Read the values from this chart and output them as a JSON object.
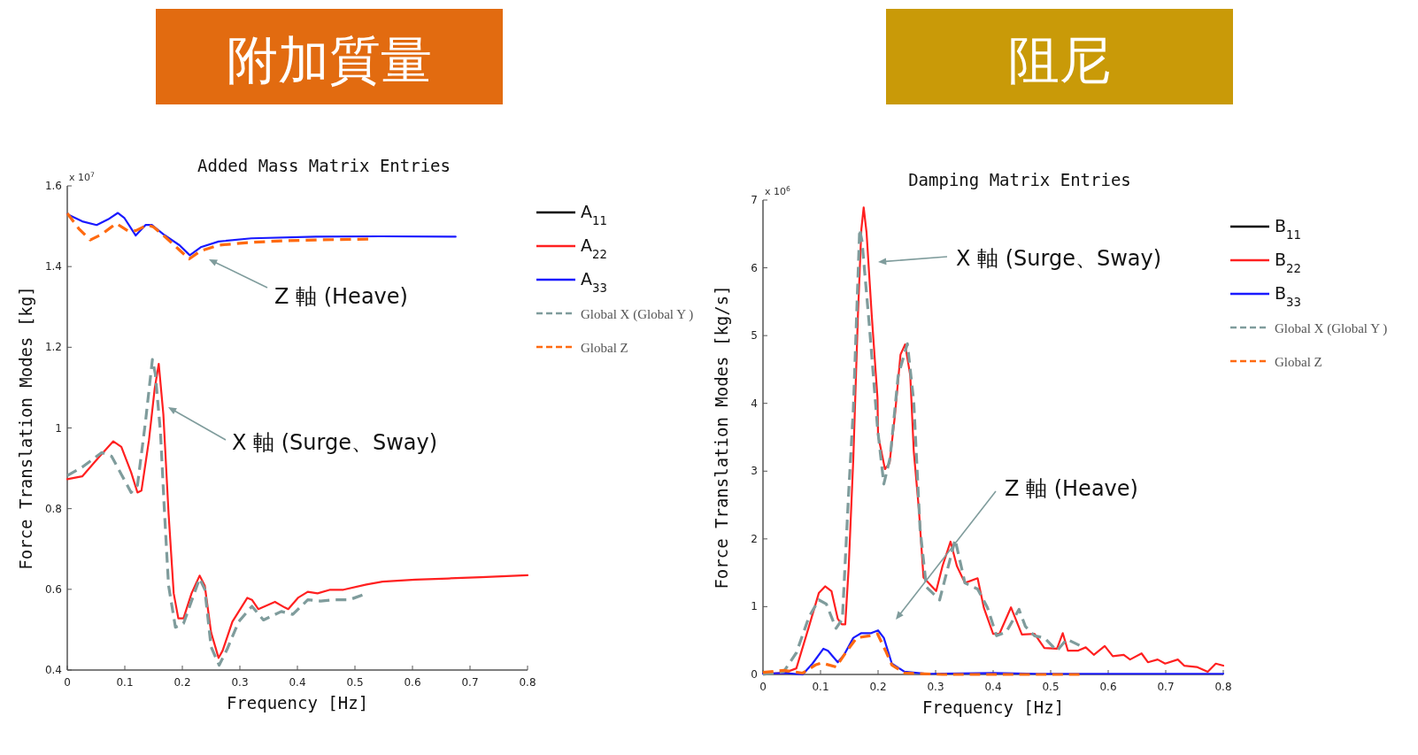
{
  "chart_data": [
    {
      "type": "line",
      "title": "附加質量",
      "subtitle": "Added Mass Matrix Entries",
      "xlabel": "Frequency [Hz]",
      "ylabel": "Force Translation Modes [kg]",
      "xlim": [
        0,
        0.8
      ],
      "ylim": [
        0.4,
        1.6
      ],
      "xticks": [
        0,
        0.1,
        0.2,
        0.3,
        0.4,
        0.5,
        0.6,
        0.7,
        0.8
      ],
      "yticks": [
        0.4,
        0.6,
        0.8,
        1,
        1.2,
        1.4,
        1.6
      ],
      "legend": "right",
      "annotations": [
        "x 10$^{7}$",
        "Z 軸 (Heave)",
        "X 軸 (Surge、Sway)"
      ],
      "series": [
        {
          "name": "A$_{11}$",
          "color": "#000000"
        },
        {
          "name": "A$_{22}$",
          "color": "#ff2020",
          "x": [
            0,
            0.026,
            0.054,
            0.08,
            0.094,
            0.111,
            0.122,
            0.129,
            0.142,
            0.152,
            0.159,
            0.167,
            0.176,
            0.185,
            0.193,
            0.202,
            0.216,
            0.23,
            0.239,
            0.25,
            0.263,
            0.27,
            0.287,
            0.313,
            0.321,
            0.332,
            0.361,
            0.378,
            0.384,
            0.401,
            0.418,
            0.435,
            0.457,
            0.48,
            0.52,
            0.548,
            0.605,
            0.662,
            0.719,
            0.8
          ],
          "values": [
            0.873,
            0.88,
            0.926,
            0.967,
            0.953,
            0.89,
            0.84,
            0.845,
            0.97,
            1.098,
            1.159,
            1.034,
            0.79,
            0.59,
            0.528,
            0.528,
            0.59,
            0.634,
            0.609,
            0.493,
            0.43,
            0.448,
            0.52,
            0.579,
            0.574,
            0.551,
            0.569,
            0.555,
            0.551,
            0.579,
            0.594,
            0.59,
            0.599,
            0.599,
            0.612,
            0.619,
            0.624,
            0.627,
            0.63,
            0.635
          ]
        },
        {
          "name": "A$_{33}$",
          "color": "#1a1aff",
          "x": [
            0,
            0.026,
            0.051,
            0.071,
            0.088,
            0.099,
            0.119,
            0.136,
            0.147,
            0.167,
            0.195,
            0.213,
            0.232,
            0.263,
            0.32,
            0.432,
            0.545,
            0.675
          ],
          "values": [
            1.53,
            1.512,
            1.503,
            1.517,
            1.533,
            1.521,
            1.477,
            1.503,
            1.503,
            1.48,
            1.453,
            1.428,
            1.448,
            1.462,
            1.47,
            1.474,
            1.475,
            1.474
          ]
        },
        {
          "name": "Global X (Global Y )",
          "color": "#7f9c9c",
          "line_style": "dashed",
          "x": [
            0,
            0.026,
            0.06,
            0.077,
            0.094,
            0.111,
            0.122,
            0.136,
            0.148,
            0.153,
            0.162,
            0.169,
            0.176,
            0.188,
            0.202,
            0.219,
            0.23,
            0.239,
            0.25,
            0.264,
            0.278,
            0.298,
            0.321,
            0.341,
            0.372,
            0.392,
            0.418,
            0.44,
            0.463,
            0.49,
            0.513
          ],
          "values": [
            0.882,
            0.903,
            0.939,
            0.93,
            0.885,
            0.84,
            0.858,
            1.016,
            1.17,
            1.134,
            0.99,
            0.79,
            0.61,
            0.506,
            0.515,
            0.583,
            0.627,
            0.6,
            0.457,
            0.412,
            0.452,
            0.52,
            0.558,
            0.524,
            0.545,
            0.538,
            0.574,
            0.571,
            0.574,
            0.574,
            0.586
          ]
        },
        {
          "name": "Global Z",
          "color": "#ff6a10",
          "line_style": "dashed",
          "x": [
            0,
            0.02,
            0.04,
            0.06,
            0.085,
            0.105,
            0.119,
            0.139,
            0.15,
            0.172,
            0.195,
            0.212,
            0.232,
            0.263,
            0.32,
            0.376,
            0.432,
            0.523
          ],
          "values": [
            1.532,
            1.494,
            1.466,
            1.48,
            1.507,
            1.489,
            1.489,
            1.503,
            1.498,
            1.471,
            1.441,
            1.419,
            1.439,
            1.453,
            1.46,
            1.464,
            1.466,
            1.468
          ]
        }
      ]
    },
    {
      "type": "line",
      "title": "阻尼",
      "subtitle": "Damping Matrix Entries",
      "xlabel": "Frequency [Hz]",
      "ylabel": "Force Translation Modes [kg/s]",
      "xlim": [
        0,
        0.8
      ],
      "ylim": [
        0,
        7
      ],
      "xticks": [
        0,
        0.1,
        0.2,
        0.3,
        0.4,
        0.5,
        0.6,
        0.7,
        0.8
      ],
      "yticks": [
        0,
        1,
        2,
        3,
        4,
        5,
        6,
        7
      ],
      "legend": "right",
      "annotations": [
        "x 10$^{6}$",
        "X 軸 (Surge、Sway)",
        "Z 軸 (Heave)"
      ],
      "series": [
        {
          "name": "B$_{11}$",
          "color": "#000000"
        },
        {
          "name": "B$_{22}$",
          "color": "#ff2020",
          "x": [
            0,
            0.036,
            0.058,
            0.08,
            0.097,
            0.108,
            0.119,
            0.13,
            0.137,
            0.143,
            0.149,
            0.157,
            0.165,
            0.171,
            0.175,
            0.18,
            0.189,
            0.199,
            0.2,
            0.212,
            0.22,
            0.229,
            0.239,
            0.247,
            0.256,
            0.262,
            0.271,
            0.279,
            0.301,
            0.312,
            0.326,
            0.337,
            0.351,
            0.373,
            0.384,
            0.4,
            0.411,
            0.431,
            0.45,
            0.472,
            0.489,
            0.511,
            0.521,
            0.53,
            0.547,
            0.561,
            0.575,
            0.594,
            0.608,
            0.627,
            0.638,
            0.658,
            0.669,
            0.686,
            0.699,
            0.721,
            0.732,
            0.754,
            0.773,
            0.787,
            0.8
          ],
          "values": [
            0.01,
            0.02,
            0.09,
            0.71,
            1.2,
            1.3,
            1.23,
            0.82,
            0.74,
            0.74,
            1.59,
            3.19,
            5.3,
            6.57,
            6.89,
            6.52,
            5.3,
            4.08,
            3.53,
            3.03,
            3.12,
            3.8,
            4.72,
            4.87,
            4.41,
            3.3,
            2.43,
            1.43,
            1.23,
            1.6,
            1.96,
            1.6,
            1.35,
            1.42,
            0.98,
            0.6,
            0.6,
            0.99,
            0.59,
            0.6,
            0.39,
            0.38,
            0.61,
            0.35,
            0.35,
            0.4,
            0.29,
            0.42,
            0.27,
            0.29,
            0.22,
            0.31,
            0.18,
            0.22,
            0.16,
            0.22,
            0.13,
            0.11,
            0.04,
            0.16,
            0.13
          ]
        },
        {
          "name": "B$_{33}$",
          "color": "#1a1aff",
          "x": [
            0,
            0.036,
            0.069,
            0.086,
            0.105,
            0.113,
            0.13,
            0.141,
            0.157,
            0.171,
            0.188,
            0.2,
            0.21,
            0.224,
            0.246,
            0.285,
            0.4,
            0.478,
            0.8
          ],
          "values": [
            0.01,
            0.02,
            0,
            0.16,
            0.38,
            0.35,
            0.18,
            0.29,
            0.54,
            0.61,
            0.61,
            0.65,
            0.54,
            0.16,
            0.04,
            0.01,
            0.02,
            0.01,
            0.01
          ]
        },
        {
          "name": "Global X (Global Y )",
          "color": "#7f9c9c",
          "line_style": "dashed",
          "x": [
            0,
            0.036,
            0.058,
            0.08,
            0.097,
            0.11,
            0.127,
            0.138,
            0.149,
            0.157,
            0.168,
            0.172,
            0.185,
            0.199,
            0.21,
            0.221,
            0.235,
            0.251,
            0.262,
            0.273,
            0.284,
            0.307,
            0.334,
            0.351,
            0.373,
            0.39,
            0.406,
            0.423,
            0.445,
            0.456,
            0.472,
            0.489,
            0.511,
            0.528,
            0.55
          ],
          "values": [
            0,
            0.04,
            0.32,
            0.85,
            1.1,
            1.04,
            0.68,
            0.82,
            2.7,
            3.91,
            6.57,
            6.4,
            5.13,
            3.64,
            2.81,
            3.2,
            4.41,
            4.88,
            4.03,
            2.15,
            1.29,
            1.1,
            1.99,
            1.35,
            1.26,
            0.99,
            0.57,
            0.63,
            0.96,
            0.71,
            0.57,
            0.54,
            0.35,
            0.52,
            0.43
          ]
        },
        {
          "name": "Global Z",
          "color": "#ff6a10",
          "line_style": "dashed",
          "x": [
            0,
            0.036,
            0.069,
            0.091,
            0.102,
            0.127,
            0.146,
            0.163,
            0.185,
            0.199,
            0.213,
            0.224,
            0.246,
            0.312,
            0.55
          ],
          "values": [
            0.03,
            0.06,
            0.02,
            0.14,
            0.17,
            0.11,
            0.35,
            0.54,
            0.57,
            0.6,
            0.35,
            0.14,
            0.02,
            0,
            0
          ]
        }
      ]
    }
  ]
}
